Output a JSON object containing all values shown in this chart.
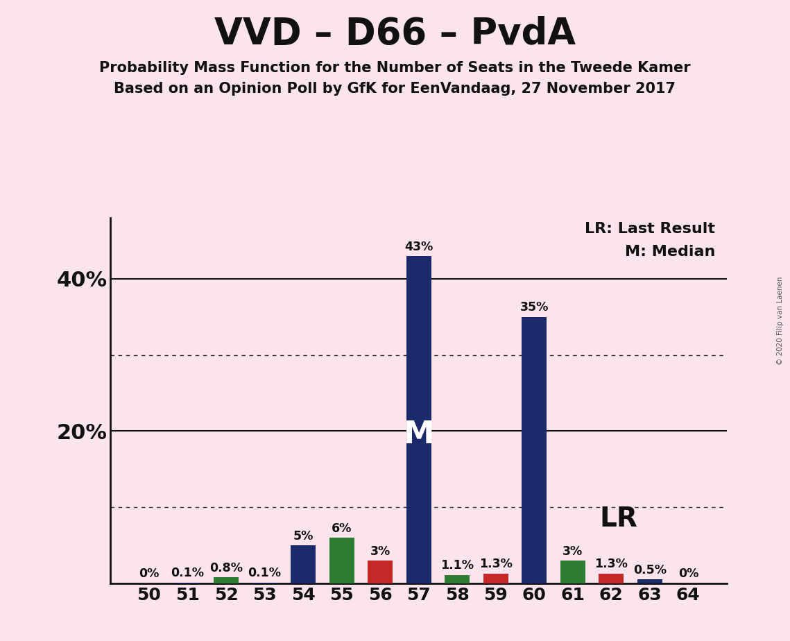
{
  "title": "VVD – D66 – PvdA",
  "subtitle1": "Probability Mass Function for the Number of Seats in the Tweede Kamer",
  "subtitle2": "Based on an Opinion Poll by GfK for EenVandaag, 27 November 2017",
  "copyright": "© 2020 Filip van Laenen",
  "seats": [
    50,
    51,
    52,
    53,
    54,
    55,
    56,
    57,
    58,
    59,
    60,
    61,
    62,
    63,
    64
  ],
  "values": [
    0.0,
    0.1,
    0.8,
    0.1,
    5.0,
    6.0,
    3.0,
    43.0,
    1.1,
    1.3,
    35.0,
    3.0,
    1.3,
    0.5,
    0.0
  ],
  "colors": [
    "#1b2a6b",
    "#1b2a6b",
    "#2e7d32",
    "#1b2a6b",
    "#1b2a6b",
    "#2e7d32",
    "#c62828",
    "#1b2a6b",
    "#2e7d32",
    "#c62828",
    "#1b2a6b",
    "#2e7d32",
    "#c62828",
    "#1b2a6b",
    "#1b2a6b"
  ],
  "labels": [
    "0%",
    "0.1%",
    "0.8%",
    "0.1%",
    "5%",
    "6%",
    "3%",
    "43%",
    "1.1%",
    "1.3%",
    "35%",
    "3%",
    "1.3%",
    "0.5%",
    "0%"
  ],
  "median_seat": 57,
  "lr_seat": 61,
  "ylim_max": 48,
  "background_color": "#fce4ec",
  "legend_lr": "LR: Last Result",
  "legend_m": "M: Median"
}
